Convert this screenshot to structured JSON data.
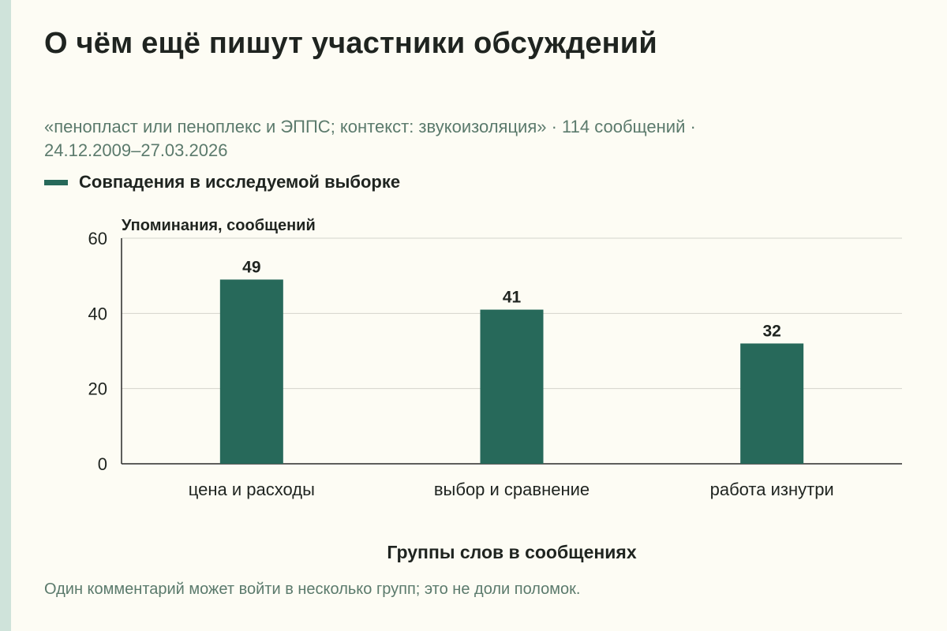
{
  "header": {
    "title": "О чём ещё пишут участники обсуждений",
    "subtitle_line1": "«пенопласт или пеноплекс и ЭППС; контекст: звукоизоляция» · 114 сообщений ·",
    "subtitle_line2": "24.12.2009–27.03.2026"
  },
  "legend": {
    "label": "Совпадения в исследуемой выборке",
    "color": "#27695a"
  },
  "chart_data": {
    "type": "bar",
    "categories": [
      "цена и расходы",
      "выбор и сравнение",
      "работа изнутри"
    ],
    "series": [
      {
        "name": "Совпадения в исследуемой выборке",
        "values": [
          49,
          41,
          32
        ]
      }
    ],
    "ylabel": "Упоминания, сообщений",
    "xlabel": "Группы слов в сообщениях",
    "ylim": [
      0,
      60
    ],
    "yticks": [
      0,
      20,
      40,
      60
    ],
    "grid": true,
    "legend_position": "top-left",
    "bar_color": "#27695a"
  },
  "footer": {
    "note": "Один комментарий может войти в несколько групп; это не доли поломок."
  }
}
